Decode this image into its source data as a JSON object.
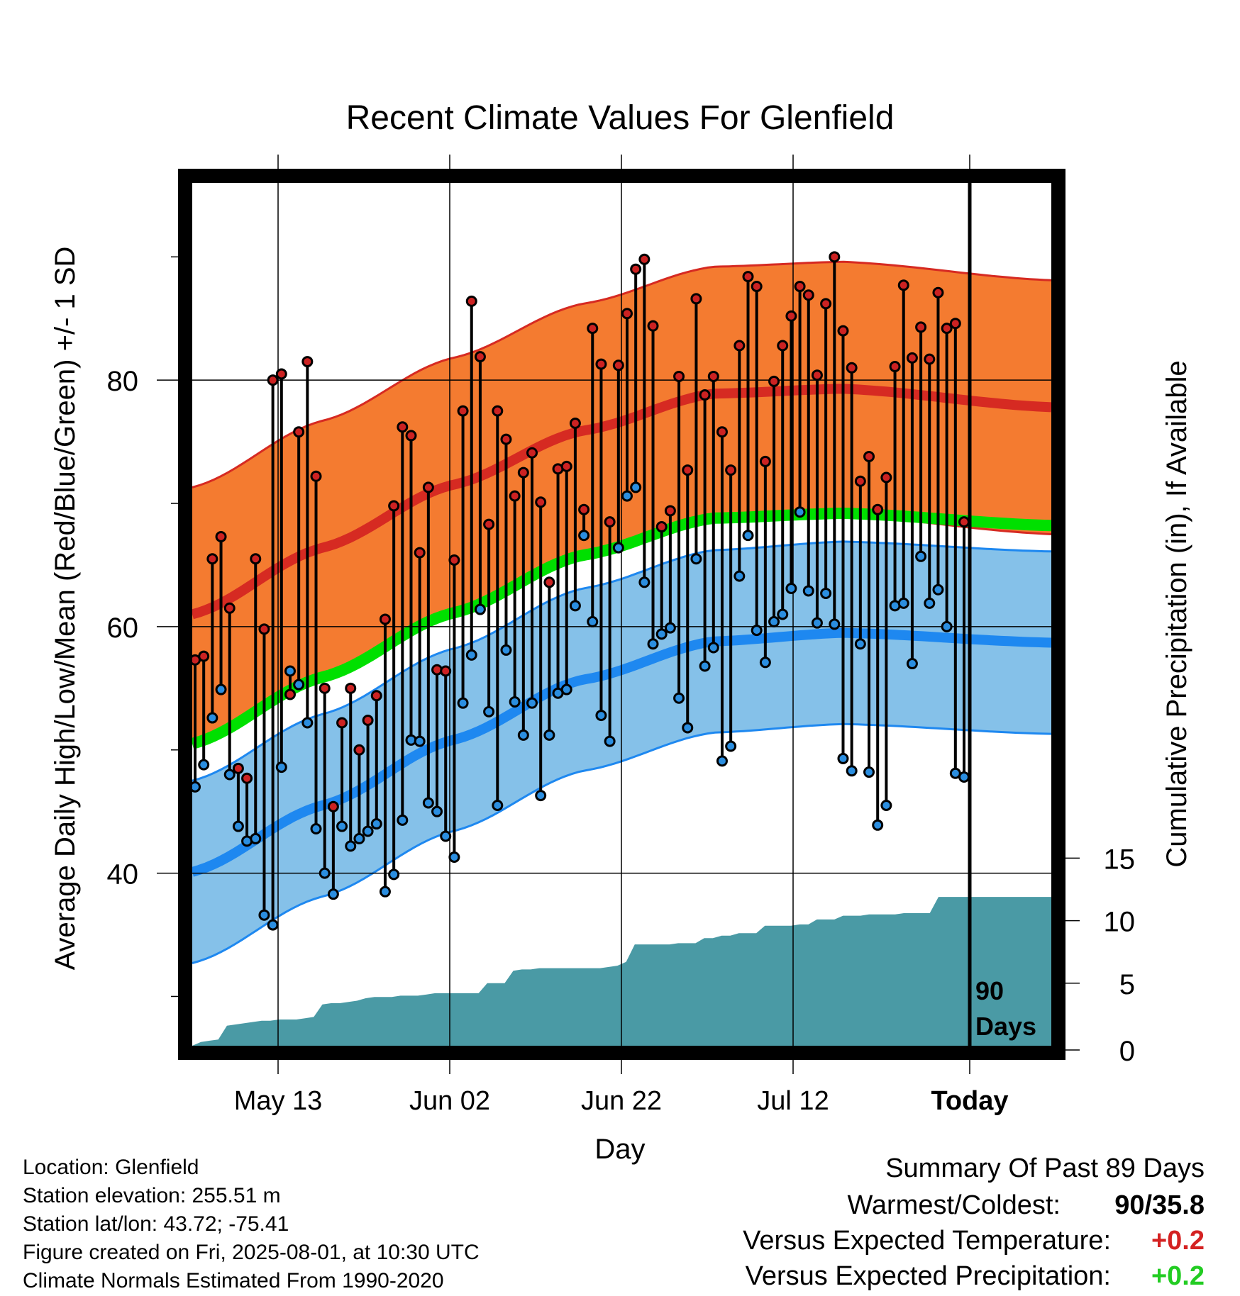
{
  "chart_data": {
    "type": "line",
    "title": "Recent Climate Values For Glenfield",
    "xlabel": "Day",
    "ylabel": "Average Daily High/Low/Mean (Red/Blue/Green) +/- 1 SD",
    "y2label": "Cumulative Precipitation (in), If Available",
    "ylim": [
      26,
      96
    ],
    "y2lim": [
      0,
      69
    ],
    "yticks": [
      40,
      60,
      80
    ],
    "y2ticks": [
      0,
      5,
      10,
      15
    ],
    "xticks": [
      "May 13",
      "Jun 02",
      "Jun 22",
      "Jul 12",
      "Today"
    ],
    "today_marker": "90\nDays",
    "grid": true,
    "colors": {
      "high_band": "#f47b30",
      "high_mean": "#d62a22",
      "mean": "#00e000",
      "low_band": "#85c1e9",
      "low_mean": "#1e88f0",
      "precip": "#4a9aa5",
      "high_point": "#cc2222",
      "low_point": "#2b8ee0"
    },
    "normals_high_mean": [
      61,
      66.4,
      71.5,
      75.9,
      78.9,
      79.3,
      77.8
    ],
    "normals_high_sd": 10.3,
    "normals_mean_temp": [
      50.5,
      55.9,
      61.1,
      65.8,
      68.8,
      69.2,
      68.2
    ],
    "normals_low_mean": [
      40.1,
      45.5,
      50.8,
      55.7,
      58.8,
      59.5,
      58.7
    ],
    "normals_low_sd": 7.4,
    "normals_days": [
      0,
      15,
      30,
      45,
      60,
      75,
      99
    ],
    "days": [
      0,
      1,
      2,
      3,
      4,
      5,
      6,
      7,
      8,
      9,
      10,
      11,
      12,
      13,
      14,
      15,
      16,
      17,
      18,
      19,
      20,
      21,
      22,
      23,
      24,
      25,
      26,
      27,
      28,
      29,
      30,
      31,
      32,
      33,
      34,
      35,
      36,
      37,
      38,
      39,
      40,
      41,
      42,
      43,
      44,
      45,
      46,
      47,
      48,
      49,
      50,
      51,
      52,
      53,
      54,
      55,
      56,
      57,
      58,
      59,
      60,
      61,
      62,
      63,
      64,
      65,
      66,
      67,
      68,
      69,
      70,
      71,
      72,
      73,
      74,
      75,
      76,
      77,
      78,
      79,
      80,
      81,
      82,
      83,
      84,
      85,
      86,
      87,
      88,
      89
    ],
    "daily_high": [
      57.3,
      57.6,
      65.5,
      67.3,
      61.5,
      48.5,
      47.7,
      65.5,
      59.8,
      80.0,
      80.5,
      54.5,
      75.8,
      81.5,
      72.2,
      55.0,
      45.4,
      52.2,
      55.0,
      50.0,
      52.4,
      54.4,
      60.6,
      69.8,
      76.2,
      75.5,
      66.0,
      71.3,
      56.5,
      56.4,
      65.4,
      77.5,
      86.4,
      81.9,
      68.3,
      77.5,
      75.2,
      70.6,
      72.5,
      74.1,
      70.1,
      63.6,
      72.8,
      73.0,
      76.5,
      69.5,
      84.2,
      81.3,
      68.5,
      81.2,
      85.4,
      89.0,
      89.8,
      84.4,
      68.1,
      69.4,
      80.3,
      72.7,
      86.6,
      78.8,
      80.3,
      75.8,
      72.7,
      82.8,
      88.4,
      87.6,
      73.4,
      79.9,
      82.8,
      85.2,
      87.6,
      86.9,
      80.4,
      86.2,
      90.0,
      84.0,
      81.0,
      71.8,
      73.8,
      69.5,
      72.1,
      81.1,
      87.7,
      81.8,
      84.3,
      81.7,
      87.1,
      84.2,
      84.6,
      68.5
    ],
    "daily_low": [
      47.0,
      48.8,
      52.6,
      54.9,
      48.0,
      43.8,
      42.6,
      42.8,
      36.6,
      35.8,
      48.6,
      56.4,
      55.3,
      52.2,
      43.6,
      40.0,
      38.3,
      43.8,
      42.2,
      42.8,
      43.4,
      44.0,
      38.5,
      39.9,
      44.3,
      50.8,
      50.7,
      45.7,
      45.0,
      43.0,
      41.3,
      53.8,
      57.7,
      61.4,
      53.1,
      45.5,
      58.1,
      53.9,
      51.2,
      53.8,
      46.3,
      51.2,
      54.6,
      54.9,
      61.7,
      67.4,
      60.4,
      52.8,
      50.7,
      66.4,
      70.6,
      71.3,
      63.6,
      58.6,
      59.4,
      59.9,
      54.2,
      51.8,
      65.5,
      56.8,
      58.3,
      49.1,
      50.3,
      64.1,
      67.4,
      59.7,
      57.1,
      60.4,
      61.0,
      63.1,
      69.3,
      62.9,
      60.3,
      62.7,
      60.2,
      49.3,
      48.3,
      58.6,
      48.2,
      43.9,
      45.5,
      61.7,
      61.9,
      57.0,
      65.7,
      61.9,
      63.0,
      60.0,
      48.1,
      47.8
    ],
    "precip_cumulative": [
      0.0,
      0.3,
      0.4,
      0.5,
      1.6,
      1.7,
      1.8,
      1.9,
      2.0,
      2.0,
      2.1,
      2.1,
      2.1,
      2.2,
      2.3,
      3.3,
      3.4,
      3.4,
      3.5,
      3.6,
      3.8,
      3.9,
      3.9,
      3.9,
      4.0,
      4.0,
      4.0,
      4.1,
      4.2,
      4.2,
      4.2,
      4.2,
      4.2,
      4.2,
      5.0,
      5.0,
      5.0,
      6.0,
      6.1,
      6.1,
      6.2,
      6.2,
      6.2,
      6.2,
      6.2,
      6.2,
      6.2,
      6.2,
      6.3,
      6.4,
      6.7,
      8.1,
      8.1,
      8.1,
      8.1,
      8.1,
      8.2,
      8.2,
      8.2,
      8.6,
      8.6,
      8.8,
      8.8,
      9.0,
      9.0,
      9.0,
      9.6,
      9.6,
      9.6,
      9.6,
      9.7,
      9.7,
      10.1,
      10.1,
      10.1,
      10.4,
      10.4,
      10.4,
      10.5,
      10.5,
      10.5,
      10.5,
      10.6,
      10.6,
      10.6,
      10.6,
      11.9,
      11.9,
      11.9,
      11.9
    ]
  },
  "footer": {
    "location": "Location: Glenfield",
    "elevation": "Station elevation: 255.51 m",
    "latlon": "Station lat/lon: 43.72; -75.41",
    "created": "Figure created on Fri, 2025-08-01, at 10:30 UTC",
    "normals": "Climate Normals Estimated From 1990-2020"
  },
  "summary": {
    "heading": "Summary Of Past 89 Days",
    "warm_cold_label": "Warmest/Coldest:",
    "warm_cold_value": "90/35.8",
    "temp_label": "Versus Expected Temperature:",
    "temp_value": "+0.2",
    "temp_color": "#d42222",
    "precip_label": "Versus Expected Precipitation:",
    "precip_value": "+0.2",
    "precip_color": "#22cc22"
  }
}
